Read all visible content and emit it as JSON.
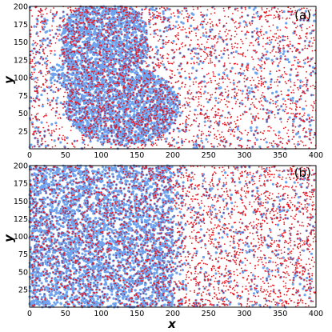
{
  "chart_data": [
    {
      "type": "scatter",
      "panel_label": "(a)",
      "xlabel": "",
      "ylabel": "y",
      "xlim": [
        0,
        400
      ],
      "ylim": [
        0,
        200
      ],
      "xticks": [
        0,
        50,
        100,
        150,
        200,
        250,
        300,
        350,
        400
      ],
      "yticks": [
        25,
        50,
        75,
        100,
        125,
        150,
        175,
        200
      ],
      "grid": false,
      "series": [
        {
          "color": "#6fa3ee",
          "description_dense_region": {
            "upper_lobe": {
              "x_range": [
                45,
                160
              ],
              "y_range": [
                95,
                200
              ]
            },
            "lower_lobe": {
              "x_range": [
                55,
                210
              ],
              "y_range": [
                10,
                115
              ]
            }
          },
          "background_density_right_half": "sparse"
        },
        {
          "color": "#e8141c",
          "distribution": "uniform over entire domain, denser inside blue lobes"
        }
      ]
    },
    {
      "type": "scatter",
      "panel_label": "(b)",
      "xlabel": "x",
      "ylabel": "y",
      "xlim": [
        0,
        400
      ],
      "ylim": [
        0,
        200
      ],
      "xticks": [
        0,
        50,
        100,
        150,
        200,
        250,
        300,
        350,
        400
      ],
      "yticks": [
        25,
        50,
        75,
        100,
        125,
        150,
        175,
        200
      ],
      "grid": false,
      "series": [
        {
          "color": "#6fa3ee",
          "description_dense_region": {
            "x_range": [
              0,
              205
            ],
            "y_range": [
              0,
              200
            ]
          },
          "background_density_right_half": "sparse"
        },
        {
          "color": "#e8141c",
          "distribution": "uniform over entire domain"
        }
      ]
    }
  ]
}
